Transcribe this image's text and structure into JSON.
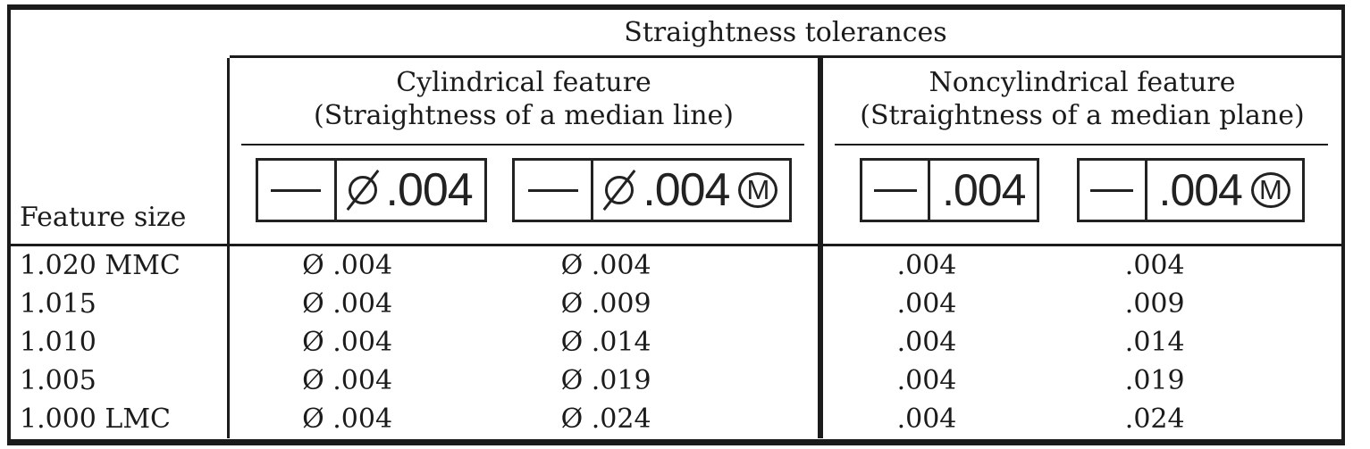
{
  "figure": {
    "title": "Straightness tolerances",
    "feature_size_header": "Feature size",
    "sections": [
      {
        "title_line1": "Cylindrical feature",
        "title_line2": "(Straightness of a median line)",
        "frames": [
          {
            "symbol": "straightness",
            "diameter": true,
            "value": ".004",
            "modifier": ""
          },
          {
            "symbol": "straightness",
            "diameter": true,
            "value": ".004",
            "modifier": "M"
          }
        ]
      },
      {
        "title_line1": "Noncylindrical feature",
        "title_line2": "(Straightness of a median plane)",
        "frames": [
          {
            "symbol": "straightness",
            "diameter": false,
            "value": ".004",
            "modifier": ""
          },
          {
            "symbol": "straightness",
            "diameter": false,
            "value": ".004",
            "modifier": "M"
          }
        ]
      }
    ],
    "rows": [
      {
        "feature_size": "1.020 MMC",
        "cyl_rfs": "Ø .004",
        "cyl_mmc": "Ø .004",
        "noncyl_rfs": ".004",
        "noncyl_mmc": ".004"
      },
      {
        "feature_size": "1.015",
        "cyl_rfs": "Ø .004",
        "cyl_mmc": "Ø .009",
        "noncyl_rfs": ".004",
        "noncyl_mmc": ".009"
      },
      {
        "feature_size": "1.010",
        "cyl_rfs": "Ø .004",
        "cyl_mmc": "Ø .014",
        "noncyl_rfs": ".004",
        "noncyl_mmc": ".014"
      },
      {
        "feature_size": "1.005",
        "cyl_rfs": "Ø .004",
        "cyl_mmc": "Ø .019",
        "noncyl_rfs": ".004",
        "noncyl_mmc": ".019"
      },
      {
        "feature_size": "1.000 LMC",
        "cyl_rfs": "Ø .004",
        "cyl_mmc": "Ø .024",
        "noncyl_rfs": ".004",
        "noncyl_mmc": ".024"
      }
    ],
    "colors": {
      "ink": "#1b1b1b",
      "background": "#ffffff"
    }
  }
}
